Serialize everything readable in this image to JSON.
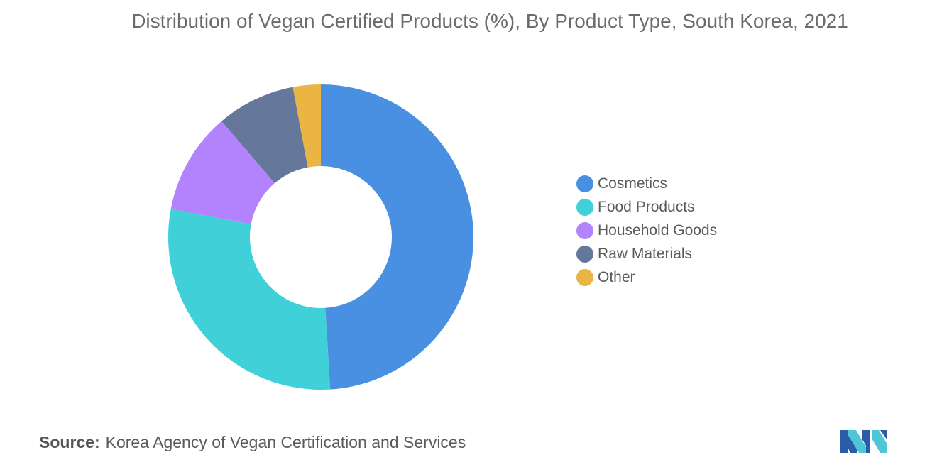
{
  "chart_data": {
    "type": "pie",
    "variant": "donut",
    "title": "Distribution of Vegan Certified Products (%), By Product Type, South Korea, 2021",
    "categories": [
      "Cosmetics",
      "Food Products",
      "Household Goods",
      "Raw Materials",
      "Other"
    ],
    "values": [
      50.0,
      29.5,
      11.0,
      8.5,
      3.0
    ],
    "colors": [
      "#4a90e2",
      "#40d0d8",
      "#b383fd",
      "#65779b",
      "#eab543"
    ],
    "legend_position": "right",
    "start_angle_deg": 90,
    "direction": "clockwise"
  },
  "legend": {
    "items": [
      {
        "label": "Cosmetics",
        "color": "#4a90e2"
      },
      {
        "label": "Food Products",
        "color": "#40d0d8"
      },
      {
        "label": "Household Goods",
        "color": "#b383fd"
      },
      {
        "label": "Raw Materials",
        "color": "#65779b"
      },
      {
        "label": "Other",
        "color": "#eab543"
      }
    ]
  },
  "source": {
    "label": "Source:",
    "text": "Korea Agency of Vegan Certification and Services"
  },
  "logo": {
    "icon": "mordor-intelligence-logo-icon",
    "colors": [
      "#2a5ca8",
      "#4ec6d8"
    ]
  }
}
